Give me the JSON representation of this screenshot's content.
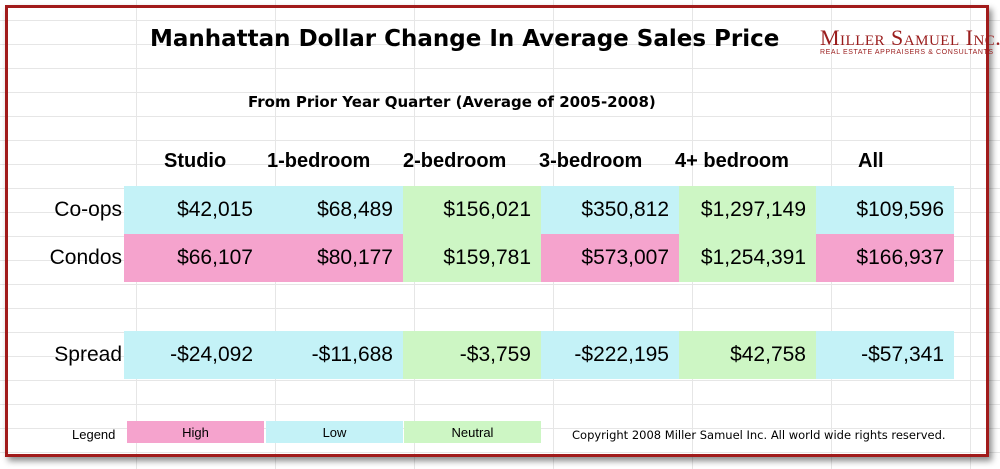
{
  "header": {
    "title": "Manhattan Dollar Change In Average Sales Price",
    "subtitle": "From Prior Year Quarter (Average of 2005-2008)",
    "logo_name": "Miller Samuel Inc.",
    "logo_tagline": "REAL ESTATE APPRAISERS & CONSULTANTS"
  },
  "colors": {
    "high": "#f5a3cd",
    "low": "#c4f2f7",
    "neutral": "#cdf6c4",
    "frame": "#a11b1b"
  },
  "chart_data": {
    "type": "table",
    "columns": [
      "Studio",
      "1-bedroom",
      "2-bedroom",
      "3-bedroom",
      "4+ bedroom",
      "All"
    ],
    "rows": [
      {
        "label": "Co-ops",
        "values": [
          "$42,015",
          "$68,489",
          "$156,021",
          "$350,812",
          "$1,297,149",
          "$109,596"
        ],
        "numeric": [
          42015,
          68489,
          156021,
          350812,
          1297149,
          109596
        ],
        "classes": [
          "low",
          "low",
          "neutral",
          "low",
          "neutral",
          "low"
        ]
      },
      {
        "label": "Condos",
        "values": [
          "$66,107",
          "$80,177",
          "$159,781",
          "$573,007",
          "$1,254,391",
          "$166,937"
        ],
        "numeric": [
          66107,
          80177,
          159781,
          573007,
          1254391,
          166937
        ],
        "classes": [
          "high",
          "high",
          "neutral",
          "high",
          "neutral",
          "high"
        ]
      },
      {
        "label": "Spread",
        "values": [
          "-$24,092",
          "-$11,688",
          "-$3,759",
          "-$222,195",
          "$42,758",
          "-$57,341"
        ],
        "numeric": [
          -24092,
          -11688,
          -3759,
          -222195,
          42758,
          -57341
        ],
        "classes": [
          "low",
          "low",
          "neutral",
          "low",
          "neutral",
          "low"
        ]
      }
    ]
  },
  "legend": {
    "label": "Legend",
    "items": [
      {
        "text": "High",
        "class": "high"
      },
      {
        "text": "Low",
        "class": "low"
      },
      {
        "text": "Neutral",
        "class": "neutral"
      }
    ]
  },
  "footer": {
    "copyright": "Copyright 2008 Miller Samuel Inc. All world wide rights reserved."
  }
}
